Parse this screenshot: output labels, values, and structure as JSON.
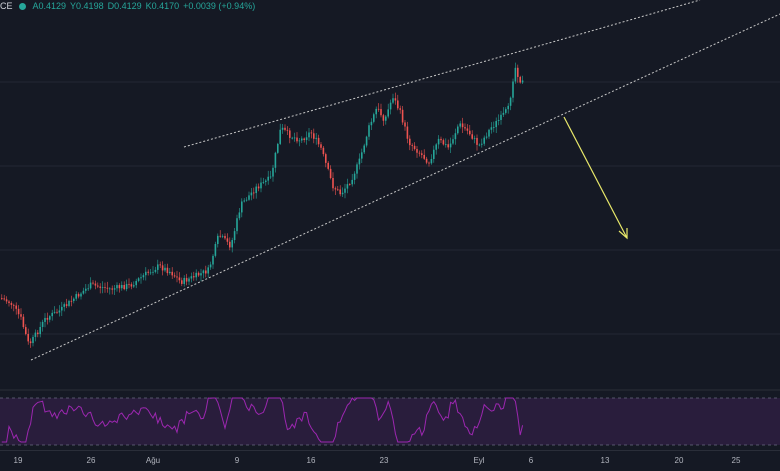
{
  "legend": {
    "symbol": "CE",
    "open": "A0.4129",
    "high": "Y0.4198",
    "low": "D0.4129",
    "close": "K0.4170",
    "change": "+0.0039 (+0.94%)",
    "status_color": "#26a69a"
  },
  "colors": {
    "background": "#151924",
    "up_candle": "#26a69a",
    "down_candle": "#ef5350",
    "trendline": "#c8c8c8",
    "arrow": "#e8e86a",
    "rsi_line": "#9c27b0",
    "rsi_band": "#3a2050"
  },
  "x_axis": {
    "ticks": [
      "19",
      "26",
      "Ağu",
      "9",
      "16",
      "23",
      "Eyl",
      "6",
      "13",
      "20",
      "25"
    ]
  }
}
